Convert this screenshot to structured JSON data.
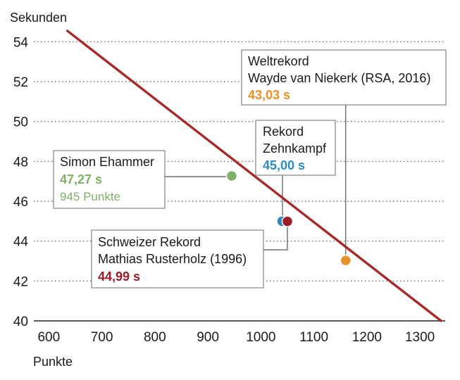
{
  "chart_data": {
    "type": "line",
    "ylabel": "Sekunden",
    "xlabel": "Punkte",
    "xlim": [
      585,
      1345
    ],
    "ylim": [
      40,
      55
    ],
    "xticks": [
      600,
      700,
      800,
      900,
      1000,
      1100,
      1200,
      1300
    ],
    "yticks": [
      40,
      42,
      44,
      46,
      48,
      50,
      52,
      54
    ],
    "grid": "horizontal-dotted",
    "colors": {
      "line": "#a52a2a",
      "green": "#7fb069",
      "blue": "#2e8bc0",
      "red": "#9b1c24",
      "orange": "#e8902a",
      "leader": "#555555",
      "box_border": "#888888"
    },
    "series": [
      {
        "x": [
          635,
          1340
        ],
        "y": [
          54.55,
          40.0
        ]
      }
    ],
    "points": [
      {
        "x": 945,
        "y": 47.27,
        "color_key": "green"
      },
      {
        "x": 1040,
        "y": 45.0,
        "color_key": "blue"
      },
      {
        "x": 1050,
        "y": 44.99,
        "color_key": "red"
      },
      {
        "x": 1160,
        "y": 43.03,
        "color_key": "orange"
      }
    ],
    "annotations": [
      {
        "lines": [
          "Weltrekord",
          "Wayde van Niekerk (RSA, 2016)"
        ],
        "value": "43,03 s",
        "color_key": "orange"
      },
      {
        "lines": [
          "Rekord",
          "Zehnkampf"
        ],
        "value": "45,00 s",
        "color_key": "blue"
      },
      {
        "lines": [
          "Simon Ehammer"
        ],
        "value": "47,27 s",
        "extra": "945 Punkte",
        "color_key": "green"
      },
      {
        "lines": [
          "Schweizer Rekord",
          "Mathias Rusterholz (1996)"
        ],
        "value": "44,99 s",
        "color_key": "red"
      }
    ]
  }
}
